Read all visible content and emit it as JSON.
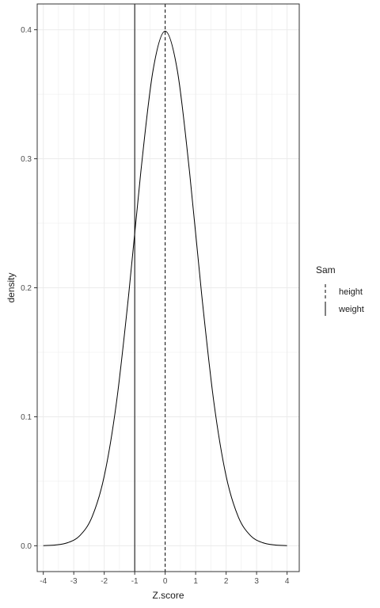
{
  "chart_data": {
    "type": "line",
    "xlabel": "Z.score",
    "ylabel": "density",
    "xlim": [
      -4.2,
      4.4
    ],
    "ylim": [
      -0.02,
      0.42
    ],
    "x_ticks": [
      -4,
      -3,
      -2,
      -1,
      0,
      1,
      2,
      3,
      4
    ],
    "x_tick_labels": [
      "-4",
      "-3",
      "-2",
      "-1",
      "0",
      "1",
      "2",
      "3",
      "4"
    ],
    "y_ticks": [
      0.0,
      0.1,
      0.2,
      0.3,
      0.4
    ],
    "y_tick_labels": [
      "0.0",
      "0.1",
      "0.2",
      "0.3",
      "0.4"
    ],
    "grid": true,
    "curve": {
      "x": [
        -4.0,
        -3.6,
        -3.2,
        -2.8,
        -2.4,
        -2.0,
        -1.6,
        -1.2,
        -0.8,
        -0.4,
        0.0,
        0.4,
        0.8,
        1.2,
        1.6,
        2.0,
        2.4,
        2.8,
        3.2,
        3.6,
        4.0
      ],
      "y": [
        0.0001,
        0.0006,
        0.0024,
        0.0079,
        0.0224,
        0.054,
        0.1109,
        0.1942,
        0.2897,
        0.3683,
        0.3989,
        0.3683,
        0.2897,
        0.1942,
        0.1109,
        0.054,
        0.0224,
        0.0079,
        0.0024,
        0.0006,
        0.0001
      ]
    },
    "vlines": [
      {
        "name": "height",
        "x": 0,
        "dash": "dashed"
      },
      {
        "name": "weight",
        "x": -1,
        "dash": "solid"
      }
    ],
    "legend": {
      "title": "Sam",
      "placement": "right",
      "entries": [
        {
          "label": "height",
          "dash": "dashed"
        },
        {
          "label": "weight",
          "dash": "solid"
        }
      ]
    },
    "colors": {
      "line": "#000000",
      "grid": "#ebebeb",
      "panel_border": "#333333",
      "background": "#ffffff"
    }
  }
}
